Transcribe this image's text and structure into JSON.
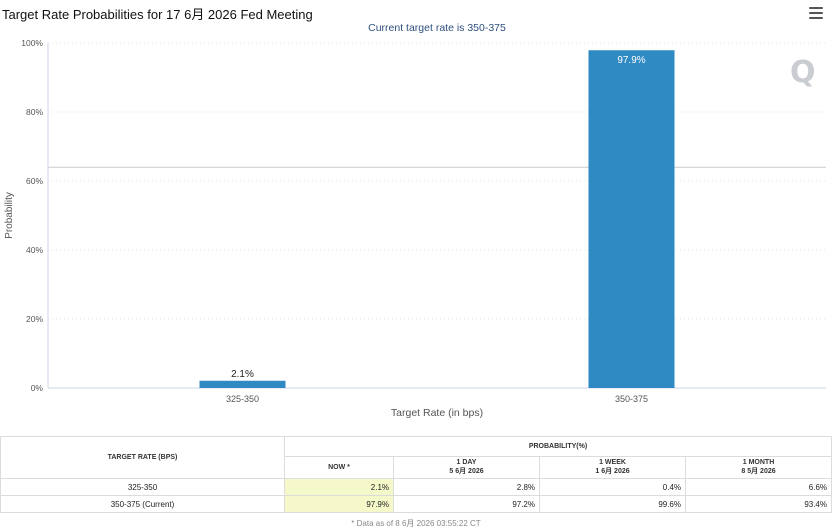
{
  "page": {
    "title": "Target Rate Probabilities for 17 6月 2026 Fed Meeting"
  },
  "chart_data": {
    "type": "bar",
    "subtitle": "Current target rate is 350-375",
    "categories": [
      "325-350",
      "350-375"
    ],
    "values": [
      2.1,
      97.9
    ],
    "data_labels": [
      "2.1%",
      "97.9%"
    ],
    "ylabel": "Probability",
    "xlabel": "Target Rate (in bps)",
    "ylim": [
      0,
      100
    ],
    "yticks": [
      "0%",
      "20%",
      "40%",
      "60%",
      "80%",
      "100%"
    ],
    "reference_line": 64,
    "bar_color": "#2f8ac4",
    "grid": true
  },
  "table": {
    "col_rate": "TARGET RATE (BPS)",
    "col_prob": "PROBABILITY(%)",
    "col_now": "NOW *",
    "col_1day": "1 DAY",
    "col_1day_date": "5 6月 2026",
    "col_1week": "1 WEEK",
    "col_1week_date": "1 6月 2026",
    "col_1month": "1 MONTH",
    "col_1month_date": "8 5月 2026",
    "rows": [
      {
        "rate": "325-350",
        "now": "2.1%",
        "day": "2.8%",
        "week": "0.4%",
        "month": "6.6%"
      },
      {
        "rate": "350-375 (Current)",
        "now": "97.9%",
        "day": "97.2%",
        "week": "99.6%",
        "month": "93.4%"
      }
    ],
    "footnote": "* Data as of 8 6月 2026 03:55:22 CT"
  },
  "icons": {
    "menu": "hamburger-menu-icon",
    "logo": "quikstrike-q-logo"
  }
}
